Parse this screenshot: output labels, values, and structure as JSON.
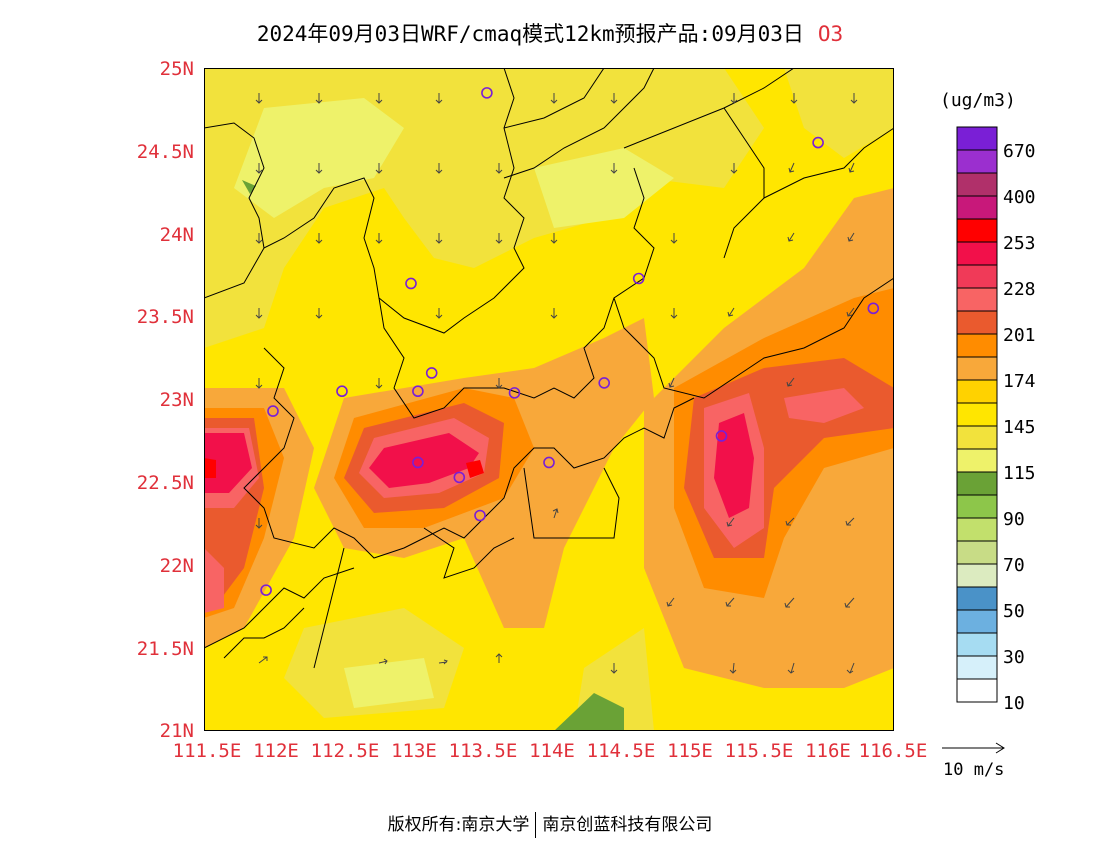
{
  "title": {
    "text": "2024年09月03日WRF/cmaq模式12km预报产品:09月03日",
    "pollutant": "O3"
  },
  "map": {
    "lat_labels": [
      "25N",
      "24.5N",
      "24N",
      "23.5N",
      "23N",
      "22.5N",
      "22N",
      "21.5N",
      "21N"
    ],
    "lon_labels": [
      "111.5E",
      "112E",
      "112.5E",
      "113E",
      "113.5E",
      "114E",
      "114.5E",
      "115E",
      "115.5E",
      "116E",
      "116.5E"
    ],
    "lat_range": [
      21,
      25
    ],
    "lon_range": [
      111.5,
      116.5
    ]
  },
  "legend": {
    "unit": "(ug/m3)",
    "levels": [
      "670",
      "400",
      "253",
      "228",
      "201",
      "174",
      "145",
      "115",
      "90",
      "70",
      "50",
      "30",
      "10"
    ],
    "colors": [
      "#7a1fd6",
      "#9b2fcf",
      "#b0306a",
      "#c8187a",
      "#ff0000",
      "#f2104a",
      "#f03a58",
      "#f86464",
      "#ea5a2e",
      "#ff8c00",
      "#f8a83a",
      "#ffd200",
      "#ffe600",
      "#f2e23c",
      "#eef26a",
      "#6aa236",
      "#8dc64a",
      "#c2e06c",
      "#c8dc86",
      "#dcebc0",
      "#4a92c8",
      "#6cb0e0",
      "#a6dcf2",
      "#d6f0fa",
      "#ffffff"
    ]
  },
  "wind_vector": {
    "label": "10 m/s"
  },
  "stations": [
    {
      "lon": 113.55,
      "lat": 24.85
    },
    {
      "lon": 115.95,
      "lat": 24.55
    },
    {
      "lon": 113.0,
      "lat": 23.7
    },
    {
      "lon": 114.65,
      "lat": 23.73
    },
    {
      "lon": 116.35,
      "lat": 23.55
    },
    {
      "lon": 112.5,
      "lat": 23.05
    },
    {
      "lon": 113.05,
      "lat": 23.05
    },
    {
      "lon": 113.15,
      "lat": 23.16
    },
    {
      "lon": 113.75,
      "lat": 23.04
    },
    {
      "lon": 114.4,
      "lat": 23.1
    },
    {
      "lon": 112.0,
      "lat": 22.93
    },
    {
      "lon": 115.25,
      "lat": 22.78
    },
    {
      "lon": 113.05,
      "lat": 22.62
    },
    {
      "lon": 114.0,
      "lat": 22.62
    },
    {
      "lon": 113.35,
      "lat": 22.53
    },
    {
      "lon": 113.5,
      "lat": 22.3
    },
    {
      "lon": 111.95,
      "lat": 21.85
    }
  ],
  "copyright": {
    "left": "版权所有:南京大学",
    "right": "南京创蓝科技有限公司"
  }
}
